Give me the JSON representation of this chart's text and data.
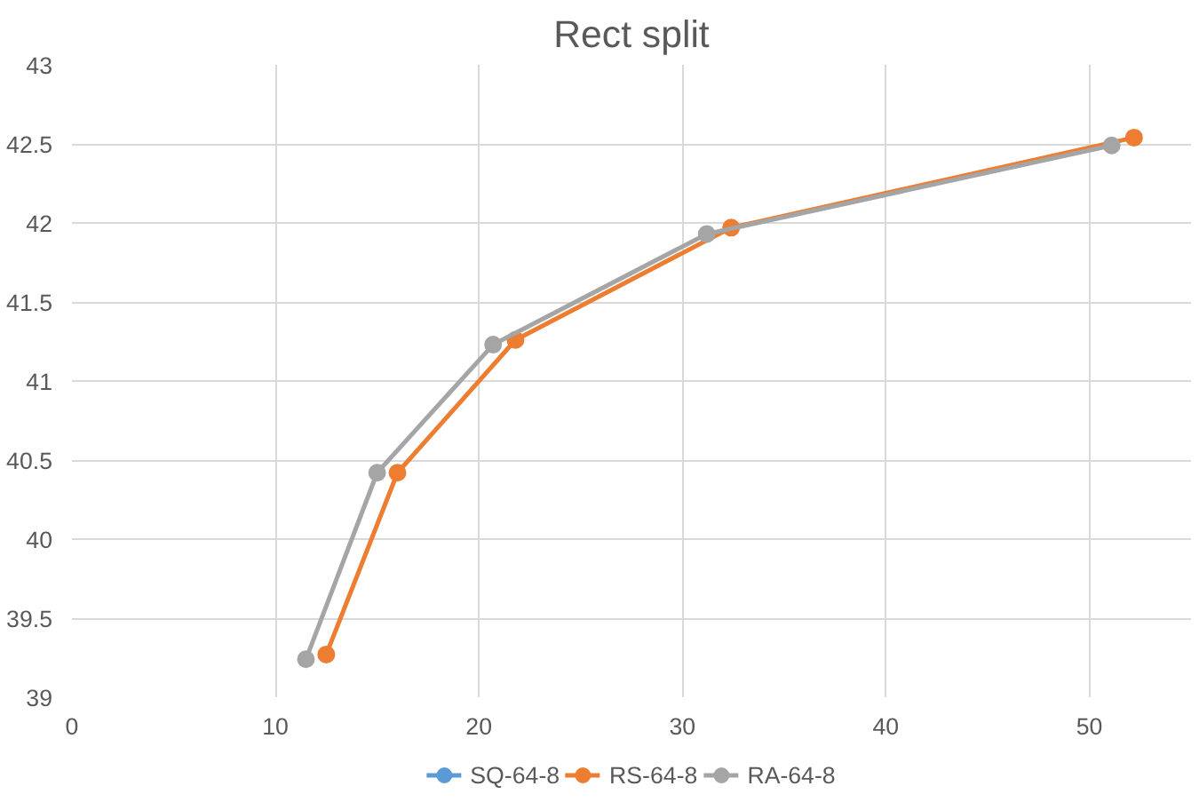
{
  "chart_data": {
    "type": "line",
    "title": "Rect split",
    "xlim": [
      0,
      55
    ],
    "xticks": [
      0,
      10,
      20,
      30,
      40,
      50
    ],
    "ylim": [
      39,
      43
    ],
    "yticks": [
      39,
      39.5,
      40,
      40.5,
      41,
      41.5,
      42,
      42.5,
      43
    ],
    "grid": true,
    "legend": "bottom",
    "marker": "circle",
    "line_style": "solid",
    "series": [
      {
        "name": "SQ-64-8",
        "color": "#5b9bd5",
        "x": [
          null,
          null,
          null,
          null,
          null
        ],
        "values": [
          null,
          null,
          null,
          null,
          null
        ]
      },
      {
        "name": "RS-64-8",
        "color": "#ed7d31",
        "x": [
          12.5,
          16.0,
          21.8,
          32.4,
          52.2
        ],
        "values": [
          39.27,
          40.42,
          41.26,
          41.97,
          42.54
        ]
      },
      {
        "name": "RA-64-8",
        "color": "#a5a5a5",
        "x": [
          11.5,
          15.0,
          20.7,
          31.2,
          51.1
        ],
        "values": [
          39.24,
          40.42,
          41.23,
          41.93,
          42.49
        ]
      }
    ]
  }
}
